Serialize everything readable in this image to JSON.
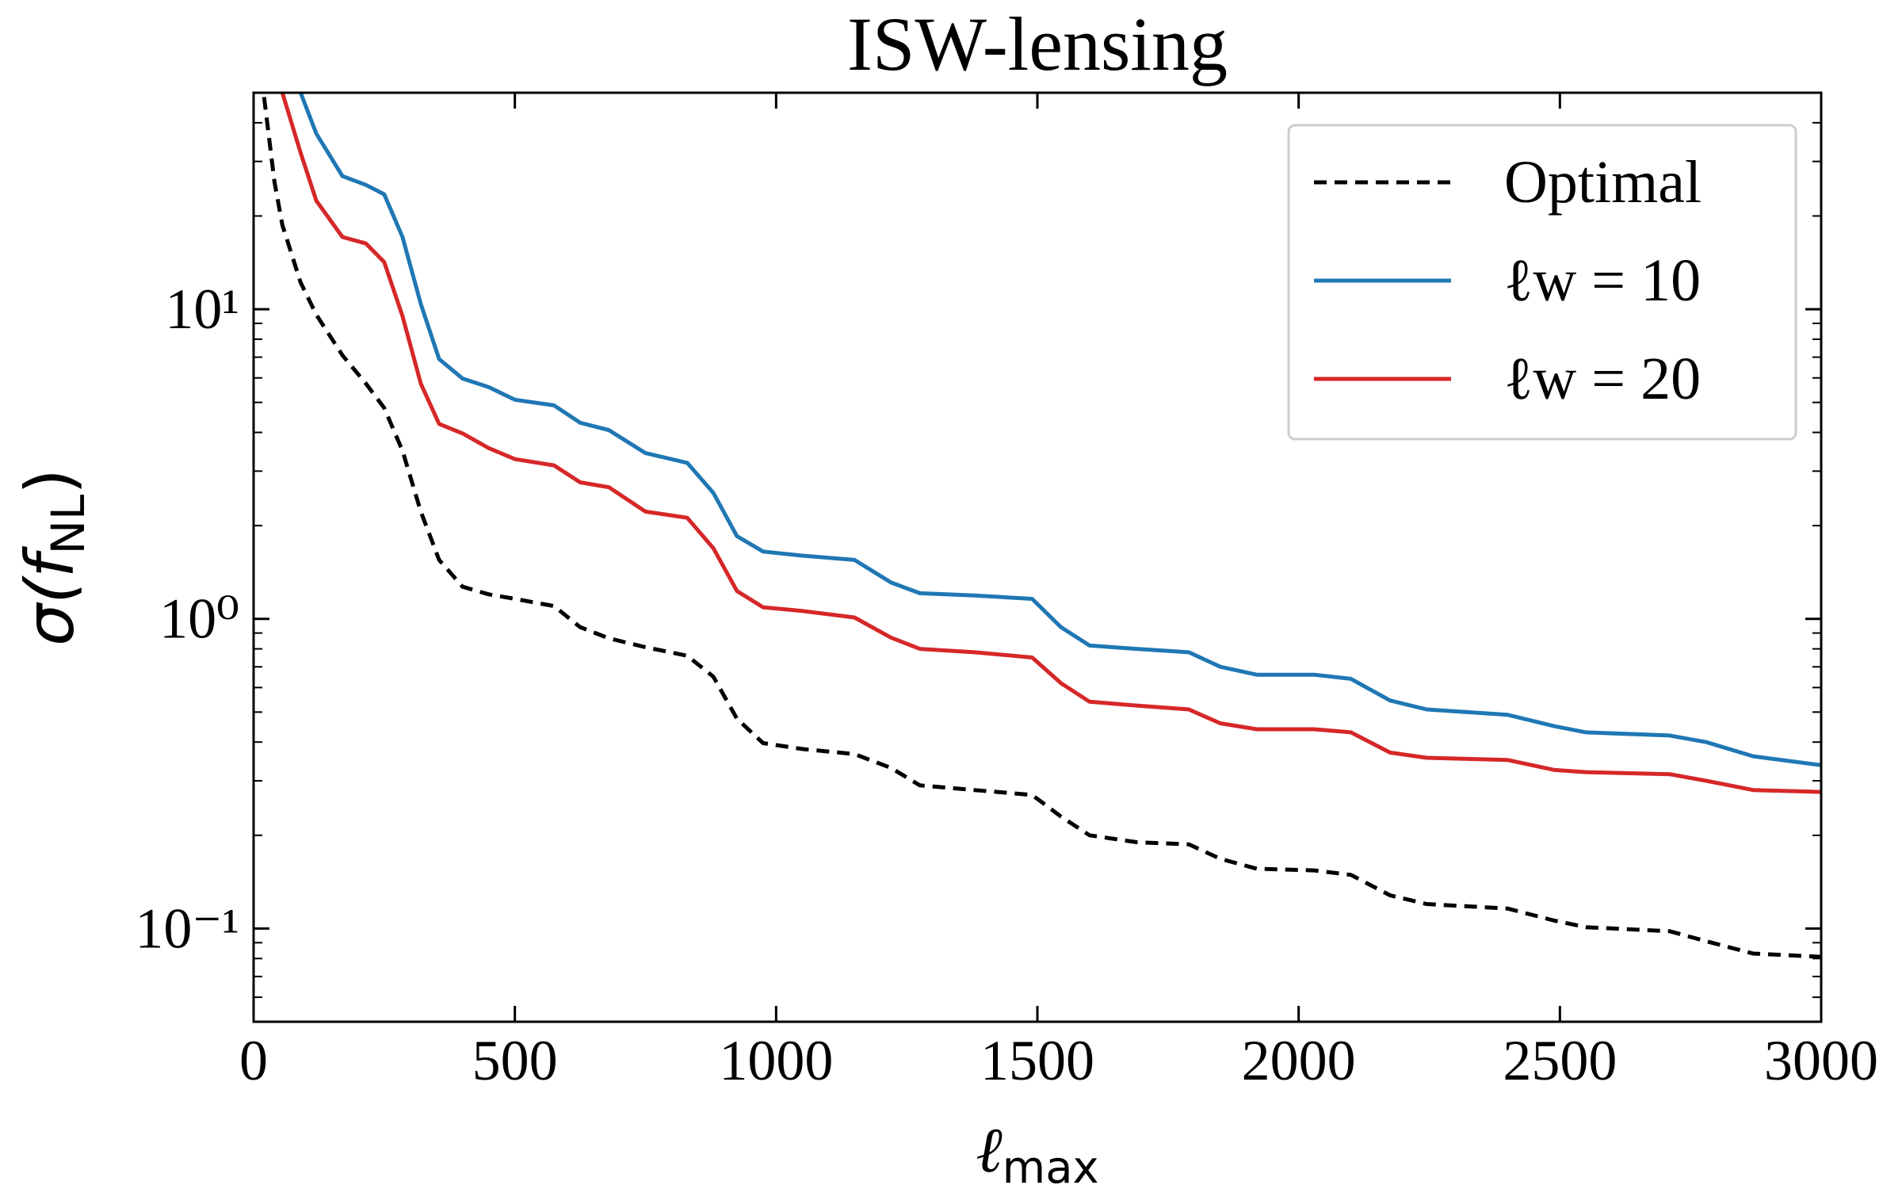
{
  "chart_data": {
    "type": "line",
    "title": "ISW-lensing",
    "x_label": {
      "base": "ℓ",
      "sub": "max"
    },
    "y_label": {
      "base": "σ(f",
      "sub": "NL",
      "tail": ")"
    },
    "log_y": true,
    "legend": "upper right",
    "xlim": [
      0,
      3000
    ],
    "xticks": [
      0,
      500,
      1000,
      1500,
      2000,
      2500,
      3000
    ],
    "ylim": [
      0.05,
      50
    ],
    "yticks": [
      {
        "value": 0.1,
        "label": "10⁻¹"
      },
      {
        "value": 1,
        "label": "10⁰"
      },
      {
        "value": 10,
        "label": "10¹"
      }
    ],
    "yminor": [
      0.06,
      0.07,
      0.08,
      0.09,
      0.2,
      0.3,
      0.4,
      0.5,
      0.6,
      0.7,
      0.8,
      0.9,
      2,
      3,
      4,
      5,
      6,
      7,
      8,
      9,
      20,
      30,
      40
    ],
    "x": [
      20,
      40,
      55,
      90,
      120,
      170,
      215,
      250,
      285,
      320,
      355,
      400,
      450,
      500,
      575,
      625,
      680,
      750,
      830,
      880,
      925,
      975,
      1050,
      1150,
      1220,
      1275,
      1380,
      1490,
      1545,
      1600,
      1690,
      1790,
      1850,
      1920,
      2030,
      2100,
      2175,
      2245,
      2400,
      2490,
      2550,
      2710,
      2780,
      2870,
      3000
    ],
    "series": [
      {
        "name": "Optimal",
        "color": "#000000",
        "dash": true,
        "values": [
          48.4,
          25.7,
          18.7,
          12.2,
          9.6,
          7.1,
          5.75,
          4.8,
          3.49,
          2.22,
          1.55,
          1.27,
          1.2,
          1.16,
          1.1,
          0.94,
          0.865,
          0.81,
          0.76,
          0.65,
          0.476,
          0.397,
          0.38,
          0.366,
          0.33,
          0.29,
          0.28,
          0.27,
          0.23,
          0.2,
          0.19,
          0.187,
          0.168,
          0.156,
          0.154,
          0.149,
          0.128,
          0.12,
          0.116,
          0.106,
          0.101,
          0.098,
          0.091,
          0.083,
          0.081
        ]
      },
      {
        "name": "ℓw = 10",
        "color": "#1f77b4",
        "dash": false,
        "values": [
          null,
          null,
          null,
          50,
          36.9,
          26.9,
          25.2,
          23.5,
          17.1,
          10.4,
          6.9,
          5.97,
          5.6,
          5.1,
          4.89,
          4.3,
          4.07,
          3.43,
          3.19,
          2.55,
          1.85,
          1.65,
          1.6,
          1.55,
          1.31,
          1.21,
          1.19,
          1.16,
          0.94,
          0.82,
          0.8,
          0.78,
          0.7,
          0.66,
          0.66,
          0.64,
          0.545,
          0.51,
          0.49,
          0.45,
          0.43,
          0.42,
          0.4,
          0.36,
          0.337
        ]
      },
      {
        "name": "ℓw = 20",
        "color": "#d62728",
        "dash": false,
        "values": [
          null,
          null,
          50,
          32,
          22.4,
          17.1,
          16.3,
          14.2,
          9.5,
          5.75,
          4.26,
          3.97,
          3.56,
          3.28,
          3.13,
          2.76,
          2.66,
          2.22,
          2.12,
          1.69,
          1.23,
          1.09,
          1.06,
          1.01,
          0.87,
          0.8,
          0.78,
          0.75,
          0.62,
          0.54,
          0.525,
          0.51,
          0.46,
          0.44,
          0.44,
          0.43,
          0.37,
          0.356,
          0.35,
          0.325,
          0.32,
          0.315,
          0.3,
          0.28,
          0.276
        ]
      }
    ]
  }
}
